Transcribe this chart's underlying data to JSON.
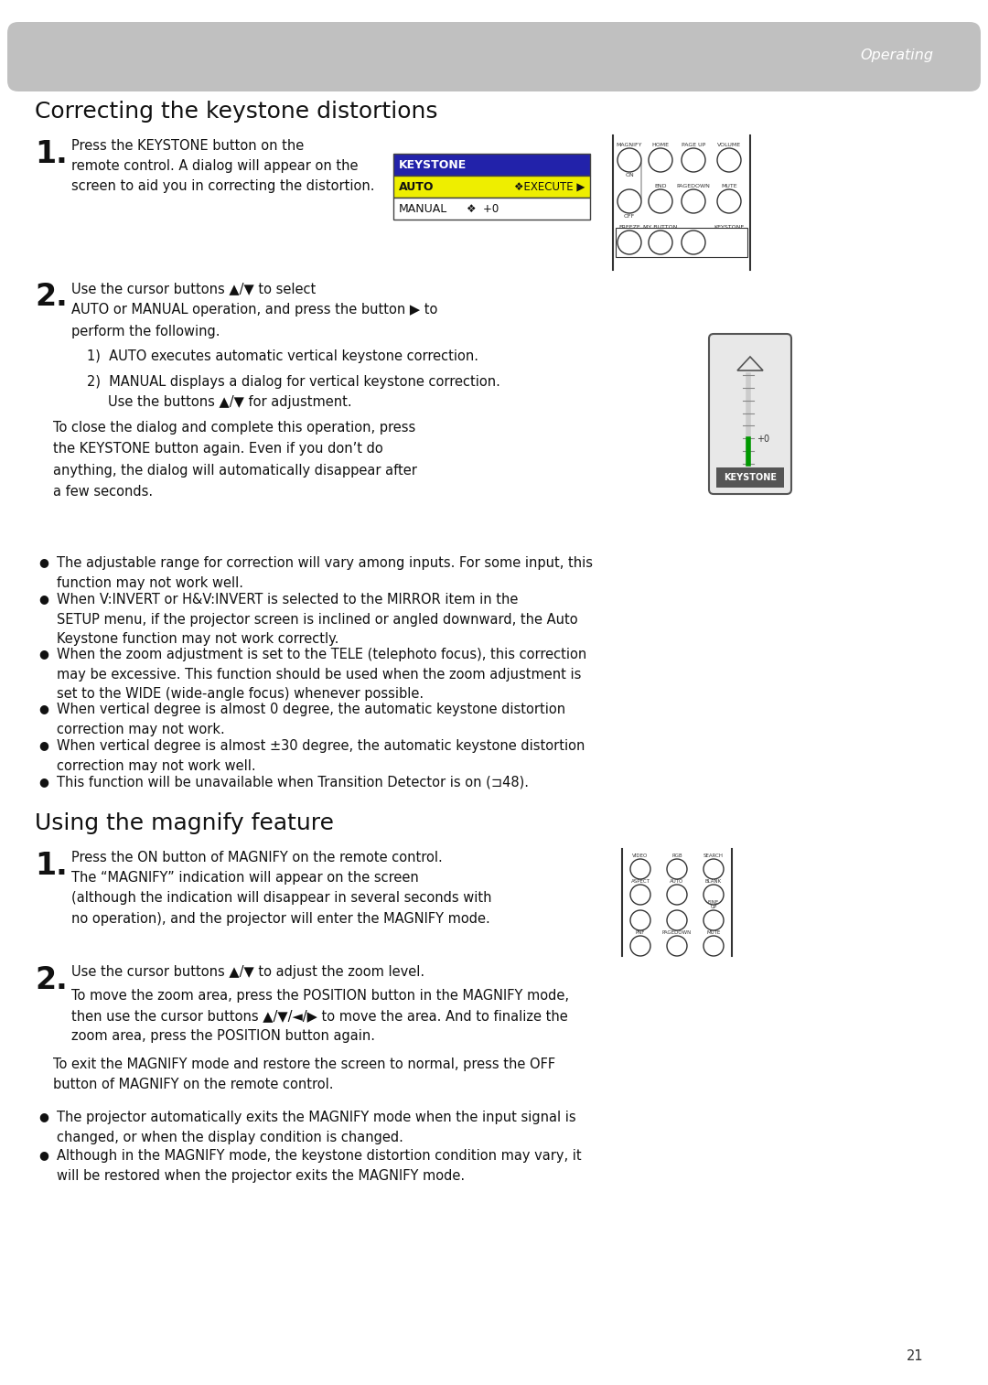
{
  "title_section1": "Correcting the keystone distortions",
  "title_section2": "Using the magnify feature",
  "bg_color": "#ffffff",
  "header_text": "Operating",
  "page_number": "21",
  "body_fs": 10.5,
  "title_fs": 18,
  "step_num_fs": 22,
  "bullet_symbol": "●",
  "bullets1": [
    "The adjustable range for correction will vary among inputs. For some input, this function may not work well.",
    "When V:INVERT or H&V:INVERT is selected to the MIRROR item in the SETUP menu, if the projector screen is inclined or angled downward, the Auto Keystone function may not work correctly.",
    "When the zoom adjustment is set to the TELE (telephoto focus), this correction may be excessive. This function should be used when the zoom adjustment is set to the WIDE (wide-angle focus) whenever possible.",
    "When vertical degree is almost 0 degree, the automatic keystone distortion correction may not work.",
    "When vertical degree is almost ±30 degree, the automatic keystone distortion correction may not work well.",
    "This function will be unavailable when Transition Detector is on (⊐48)."
  ],
  "bullets2": [
    "The projector automatically exits the MAGNIFY mode when the input signal is changed, or when the display condition is changed.",
    "Although in the MAGNIFY mode, the keystone distortion condition may vary, it will be restored when the projector exits the MAGNIFY mode."
  ]
}
